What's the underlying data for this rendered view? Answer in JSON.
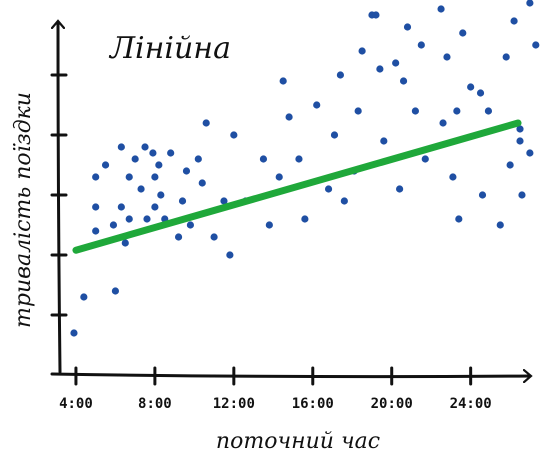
{
  "chart_data": {
    "type": "scatter",
    "title": "Лінійна",
    "xlabel": "поточний час",
    "ylabel": "тривалість поїздки",
    "x_ticks": [
      {
        "value": 4,
        "label": "4:00"
      },
      {
        "value": 8,
        "label": "8:00"
      },
      {
        "value": 12,
        "label": "12:00"
      },
      {
        "value": 16,
        "label": "16:00"
      },
      {
        "value": 20,
        "label": "20:00"
      },
      {
        "value": 24,
        "label": "24:00"
      }
    ],
    "xlim": [
      3.8,
      26.5
    ],
    "ylim": [
      0,
      6
    ],
    "y_ticks": [
      1,
      2,
      3,
      4,
      5
    ],
    "grid": false,
    "colors": {
      "points": "#1f4fa3",
      "trend_line": "#1fa83a",
      "axes": "#111111"
    },
    "points": [
      [
        3.9,
        0.7
      ],
      [
        4.4,
        1.3
      ],
      [
        5.0,
        2.4
      ],
      [
        5.0,
        2.8
      ],
      [
        5.0,
        3.3
      ],
      [
        5.5,
        3.5
      ],
      [
        5.9,
        2.5
      ],
      [
        6.0,
        1.4
      ],
      [
        6.3,
        3.8
      ],
      [
        6.3,
        2.8
      ],
      [
        6.5,
        2.2
      ],
      [
        6.7,
        3.3
      ],
      [
        6.7,
        2.6
      ],
      [
        7.0,
        3.6
      ],
      [
        7.3,
        3.1
      ],
      [
        7.5,
        3.8
      ],
      [
        7.6,
        2.6
      ],
      [
        7.9,
        3.7
      ],
      [
        8.0,
        2.8
      ],
      [
        8.0,
        3.3
      ],
      [
        8.2,
        3.5
      ],
      [
        8.3,
        3.0
      ],
      [
        8.5,
        2.6
      ],
      [
        8.8,
        3.7
      ],
      [
        9.2,
        2.3
      ],
      [
        9.4,
        2.9
      ],
      [
        9.6,
        3.4
      ],
      [
        9.8,
        2.5
      ],
      [
        10.2,
        3.6
      ],
      [
        10.4,
        3.2
      ],
      [
        10.6,
        4.2
      ],
      [
        11.0,
        2.3
      ],
      [
        11.5,
        2.9
      ],
      [
        11.8,
        2.0
      ],
      [
        12.0,
        4.0
      ],
      [
        12.6,
        2.9
      ],
      [
        13.5,
        3.6
      ],
      [
        13.8,
        2.5
      ],
      [
        14.3,
        3.3
      ],
      [
        14.5,
        4.9
      ],
      [
        14.8,
        4.3
      ],
      [
        15.3,
        3.6
      ],
      [
        15.6,
        2.6
      ],
      [
        16.2,
        4.5
      ],
      [
        16.8,
        3.1
      ],
      [
        17.1,
        4.0
      ],
      [
        17.4,
        5.0
      ],
      [
        17.6,
        2.9
      ],
      [
        18.1,
        3.4
      ],
      [
        18.3,
        4.4
      ],
      [
        18.5,
        5.4
      ],
      [
        19.0,
        6.0
      ],
      [
        19.2,
        6.0
      ],
      [
        19.4,
        5.1
      ],
      [
        19.6,
        3.9
      ],
      [
        20.2,
        5.2
      ],
      [
        20.4,
        3.1
      ],
      [
        20.6,
        4.9
      ],
      [
        20.8,
        5.8
      ],
      [
        21.2,
        4.4
      ],
      [
        21.5,
        5.5
      ],
      [
        21.7,
        3.6
      ],
      [
        22.5,
        6.1
      ],
      [
        22.6,
        4.2
      ],
      [
        22.8,
        5.3
      ],
      [
        23.1,
        3.3
      ],
      [
        23.3,
        4.4
      ],
      [
        23.4,
        2.6
      ],
      [
        23.6,
        5.7
      ],
      [
        24.0,
        4.8
      ],
      [
        24.5,
        6.4
      ],
      [
        24.5,
        4.7
      ],
      [
        24.6,
        3.0
      ],
      [
        24.9,
        4.4
      ],
      [
        25.5,
        2.5
      ],
      [
        25.8,
        5.3
      ],
      [
        26.0,
        3.5
      ],
      [
        26.2,
        5.9
      ],
      [
        26.5,
        3.9
      ],
      [
        26.5,
        4.1
      ],
      [
        26.6,
        3.0
      ],
      [
        27.0,
        6.2
      ],
      [
        27.0,
        3.7
      ],
      [
        27.3,
        5.5
      ],
      [
        28.2,
        3.1
      ]
    ],
    "trend_line": {
      "x": [
        4.0,
        26.4
      ],
      "y": [
        2.08,
        4.2
      ]
    }
  }
}
